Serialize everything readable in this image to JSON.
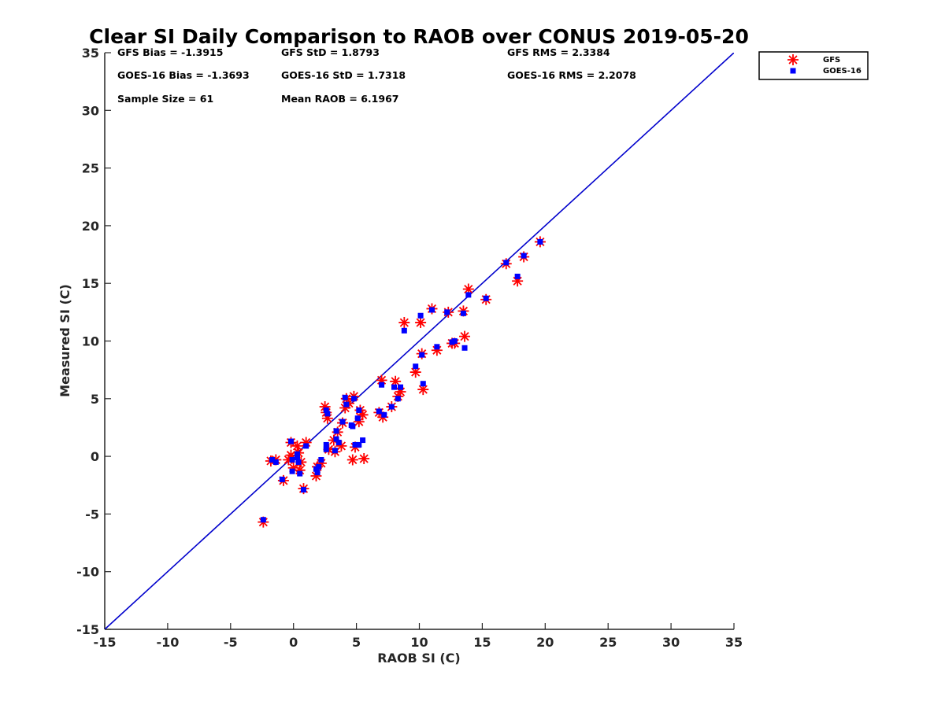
{
  "chart_data": {
    "type": "scatter",
    "title": "Clear SI Daily Comparison to RAOB over CONUS 2019-05-20",
    "xlabel": "RAOB SI (C)",
    "ylabel": "Measured SI (C)",
    "xlim": [
      -15,
      35
    ],
    "ylim": [
      -15,
      35
    ],
    "xticks": [
      -15,
      -10,
      -5,
      0,
      5,
      10,
      15,
      20,
      25,
      30,
      35
    ],
    "yticks": [
      -15,
      -10,
      -5,
      0,
      5,
      10,
      15,
      20,
      25,
      30,
      35
    ],
    "grid": false,
    "legend_position": "outside-top-right",
    "reference_line": {
      "from": [
        -15,
        -15
      ],
      "to": [
        35,
        35
      ],
      "color": "#0000cc"
    },
    "stats": {
      "gfs_bias": "GFS Bias = -1.3915",
      "gfs_std": "GFS StD = 1.8793",
      "gfs_rms": "GFS RMS = 2.3384",
      "goes_bias": "GOES-16 Bias = -1.3693",
      "goes_std": "GOES-16 StD = 1.7318",
      "goes_rms": "GOES-16 RMS = 2.2078",
      "sample_size": "Sample Size = 61",
      "mean_raob": "Mean RAOB = 6.1967"
    },
    "series": [
      {
        "name": "GFS",
        "marker": "asterisk",
        "color": "#ff0000",
        "points": [
          [
            -2.4,
            -5.7
          ],
          [
            -1.8,
            -0.4
          ],
          [
            -1.4,
            -0.3
          ],
          [
            -0.8,
            -2.1
          ],
          [
            -0.2,
            1.2
          ],
          [
            -0.2,
            0.1
          ],
          [
            0.0,
            -1.0
          ],
          [
            0.4,
            0.3
          ],
          [
            0.5,
            -1.2
          ],
          [
            0.6,
            -0.5
          ],
          [
            0.8,
            -2.8
          ],
          [
            1.0,
            1.2
          ],
          [
            1.8,
            -1.7
          ],
          [
            2.2,
            -0.6
          ],
          [
            2.5,
            4.3
          ],
          [
            2.6,
            3.8
          ],
          [
            2.7,
            3.3
          ],
          [
            2.8,
            0.6
          ],
          [
            3.3,
            0.4
          ],
          [
            3.5,
            2.1
          ],
          [
            3.8,
            0.9
          ],
          [
            3.9,
            2.9
          ],
          [
            4.2,
            5.0
          ],
          [
            4.4,
            4.6
          ],
          [
            4.7,
            -0.3
          ],
          [
            4.8,
            5.2
          ],
          [
            4.9,
            0.8
          ],
          [
            5.2,
            3.0
          ],
          [
            5.3,
            4.0
          ],
          [
            5.5,
            3.6
          ],
          [
            5.6,
            -0.2
          ],
          [
            6.8,
            3.8
          ],
          [
            7.1,
            3.4
          ],
          [
            7.0,
            6.6
          ],
          [
            7.8,
            4.3
          ],
          [
            8.1,
            6.5
          ],
          [
            8.5,
            5.6
          ],
          [
            8.8,
            11.6
          ],
          [
            9.7,
            7.3
          ],
          [
            10.1,
            11.6
          ],
          [
            10.2,
            8.9
          ],
          [
            10.3,
            5.8
          ],
          [
            11.0,
            12.8
          ],
          [
            11.4,
            9.2
          ],
          [
            12.3,
            12.5
          ],
          [
            12.6,
            9.8
          ],
          [
            12.8,
            9.8
          ],
          [
            13.5,
            12.6
          ],
          [
            13.6,
            10.4
          ],
          [
            13.9,
            14.5
          ],
          [
            15.3,
            13.6
          ],
          [
            16.9,
            16.7
          ],
          [
            17.8,
            15.2
          ],
          [
            18.3,
            17.3
          ],
          [
            19.6,
            18.6
          ],
          [
            0.3,
            0.9
          ],
          [
            -0.4,
            -0.3
          ],
          [
            1.9,
            -0.9
          ],
          [
            3.2,
            1.4
          ],
          [
            4.1,
            4.2
          ],
          [
            8.3,
            5.2
          ]
        ]
      },
      {
        "name": "GOES-16",
        "marker": "square",
        "color": "#0000ff",
        "points": [
          [
            -2.4,
            -5.5
          ],
          [
            -1.7,
            -0.3
          ],
          [
            -1.4,
            -0.5
          ],
          [
            -0.9,
            -2.0
          ],
          [
            -0.2,
            1.3
          ],
          [
            -0.1,
            -0.3
          ],
          [
            -0.1,
            -1.3
          ],
          [
            0.3,
            0.2
          ],
          [
            0.5,
            -1.5
          ],
          [
            0.4,
            -0.5
          ],
          [
            0.8,
            -2.9
          ],
          [
            1.0,
            0.9
          ],
          [
            1.9,
            -1.4
          ],
          [
            2.2,
            -0.3
          ],
          [
            2.6,
            4.0
          ],
          [
            2.6,
            1.0
          ],
          [
            2.7,
            3.7
          ],
          [
            2.6,
            0.6
          ],
          [
            3.3,
            0.5
          ],
          [
            3.4,
            2.2
          ],
          [
            3.4,
            1.5
          ],
          [
            3.9,
            3.0
          ],
          [
            4.1,
            5.1
          ],
          [
            4.2,
            4.5
          ],
          [
            4.6,
            2.7
          ],
          [
            4.8,
            5.0
          ],
          [
            4.9,
            1.0
          ],
          [
            5.1,
            3.3
          ],
          [
            5.2,
            4.0
          ],
          [
            5.2,
            1.0
          ],
          [
            5.5,
            1.4
          ],
          [
            6.8,
            3.9
          ],
          [
            7.0,
            6.2
          ],
          [
            7.2,
            3.6
          ],
          [
            7.8,
            4.3
          ],
          [
            8.0,
            6.0
          ],
          [
            8.3,
            5.0
          ],
          [
            8.5,
            6.0
          ],
          [
            8.8,
            10.9
          ],
          [
            9.7,
            7.8
          ],
          [
            10.1,
            12.2
          ],
          [
            10.2,
            8.8
          ],
          [
            10.3,
            6.3
          ],
          [
            11.0,
            12.7
          ],
          [
            11.4,
            9.5
          ],
          [
            12.2,
            12.5
          ],
          [
            12.6,
            9.9
          ],
          [
            12.8,
            10.0
          ],
          [
            13.5,
            12.4
          ],
          [
            13.6,
            9.4
          ],
          [
            13.9,
            14.0
          ],
          [
            15.3,
            13.7
          ],
          [
            16.9,
            16.8
          ],
          [
            17.8,
            15.6
          ],
          [
            18.3,
            17.4
          ],
          [
            19.6,
            18.6
          ],
          [
            2.0,
            -0.9
          ],
          [
            3.6,
            1.2
          ],
          [
            4.7,
            2.6
          ],
          [
            0.3,
            -0.1
          ],
          [
            1.8,
            -1.1
          ]
        ]
      }
    ]
  }
}
